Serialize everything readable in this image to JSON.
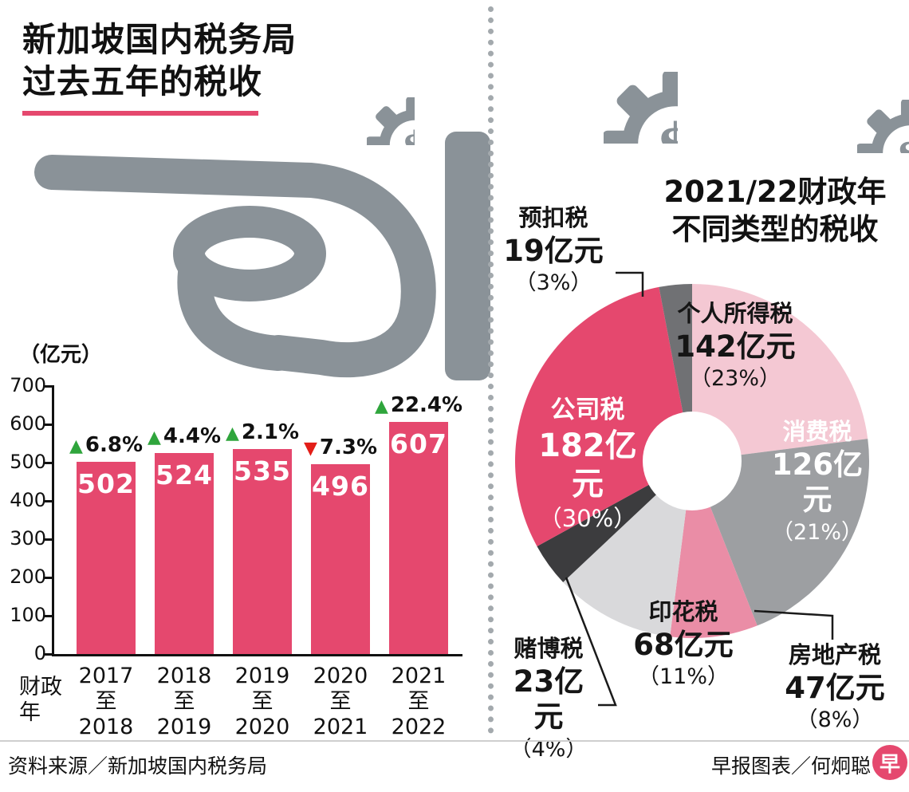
{
  "header": {
    "title_line1": "新加坡国内税务局",
    "title_line2": "过去五年的税收"
  },
  "right_header": {
    "title_line1": "2021/22财政年",
    "title_line2": "不同类型的税收"
  },
  "footer": {
    "source": "资料来源／新加坡国内税务局",
    "credit": "早报图表／何炯聪",
    "logo_char": "早"
  },
  "colors": {
    "accent_pink": "#e5486e",
    "icon_gray": "#8a9298",
    "up_green": "#2fa53c",
    "down_red": "#e31e18",
    "text_dark": "#111111"
  },
  "icons": {
    "gear_dollar_symbol": "$"
  },
  "chart_data": [
    {
      "type": "bar",
      "title": "新加坡国内税务局过去五年的税收",
      "unit_label": "（亿元）",
      "xlabel": "财政年",
      "categories": [
        "2017至2018",
        "2018至2019",
        "2019至2020",
        "2020至2021",
        "2021至2022"
      ],
      "values": [
        502,
        524,
        535,
        496,
        607
      ],
      "changes": [
        {
          "direction": "up",
          "label": "6.8%"
        },
        {
          "direction": "up",
          "label": "4.4%"
        },
        {
          "direction": "up",
          "label": "2.1%"
        },
        {
          "direction": "down",
          "label": "7.3%"
        },
        {
          "direction": "up",
          "label": "22.4%"
        }
      ],
      "ylim": [
        0,
        700
      ],
      "yticks": [
        0,
        100,
        200,
        300,
        400,
        500,
        600,
        700
      ],
      "bar_color": "#e5486e",
      "grid": false,
      "legend": false
    },
    {
      "type": "pie",
      "title": "2021/22财政年不同类型的税收",
      "donut": true,
      "start_angle": "12-oclock-clockwise",
      "slices": [
        {
          "name": "个人所得税",
          "value_label": "142亿元",
          "pct": 23,
          "pct_label": "（23%）",
          "color": "#f4c8d3"
        },
        {
          "name": "消费税",
          "value_label": "126亿元",
          "pct": 21,
          "pct_label": "（21%）",
          "color": "#9d9fa2"
        },
        {
          "name": "房地产税",
          "value_label": "47亿元",
          "pct": 8,
          "pct_label": "（8%）",
          "color": "#ea8da6"
        },
        {
          "name": "印花税",
          "value_label": "68亿元",
          "pct": 11,
          "pct_label": "（11%）",
          "color": "#d9d9db"
        },
        {
          "name": "赌博税",
          "value_label": "23亿元",
          "pct": 4,
          "pct_label": "（4%）",
          "color": "#3c3c3e"
        },
        {
          "name": "公司税",
          "value_label": "182亿元",
          "pct": 30,
          "pct_label": "（30%）",
          "color": "#e5486e"
        },
        {
          "name": "预扣税",
          "value_label": "19亿元",
          "pct": 3,
          "pct_label": "（3%）",
          "color": "#707174"
        }
      ]
    }
  ]
}
